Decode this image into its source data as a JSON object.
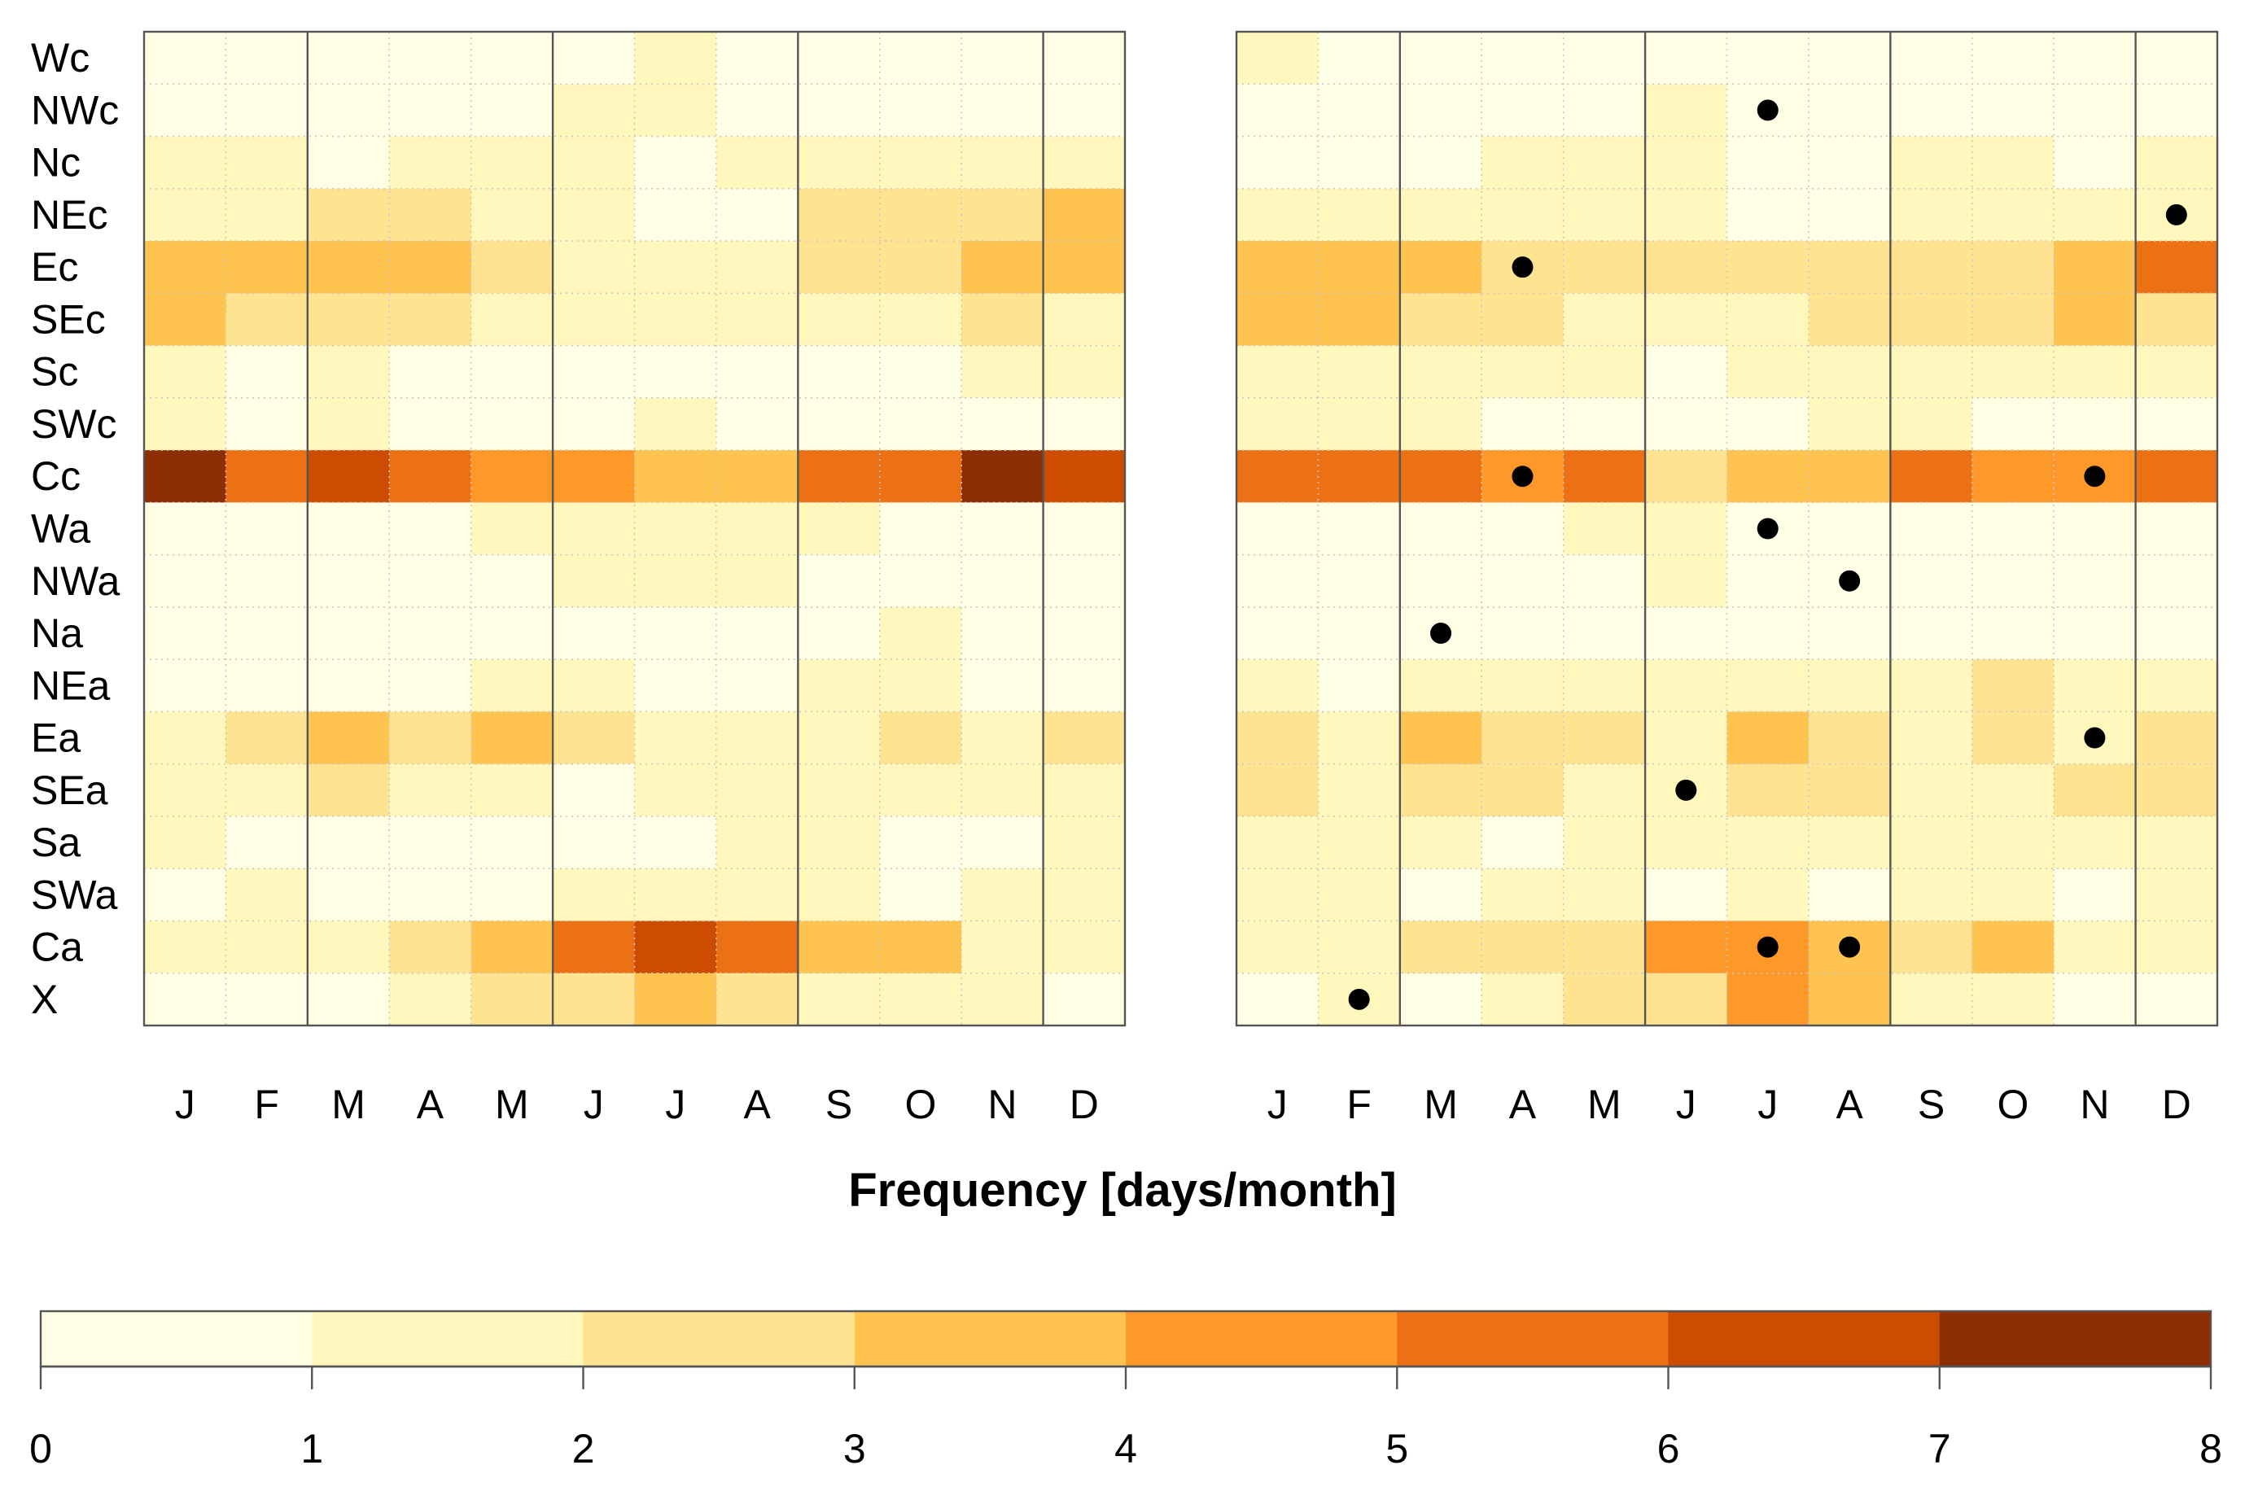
{
  "chart_data": {
    "type": "heatmap",
    "xlabel": "Frequency [days/month]",
    "rows": [
      "Wc",
      "NWc",
      "Nc",
      "NEc",
      "Ec",
      "SEc",
      "Sc",
      "SWc",
      "Cc",
      "Wa",
      "NWa",
      "Na",
      "NEa",
      "Ea",
      "SEa",
      "Sa",
      "SWa",
      "Ca",
      "X"
    ],
    "months": [
      "J",
      "F",
      "M",
      "A",
      "M",
      "J",
      "J",
      "A",
      "S",
      "O",
      "N",
      "D"
    ],
    "colorbar": {
      "ticks": [
        "0",
        "1",
        "2",
        "3",
        "4",
        "5",
        "6",
        "7",
        "8"
      ],
      "bins": [
        0,
        1,
        2,
        3,
        4,
        5,
        6,
        7,
        8
      ],
      "colors": [
        "#FFFFE5",
        "#FFF7BC",
        "#FEE391",
        "#FEC44F",
        "#FE9929",
        "#EC7014",
        "#CC4C02",
        "#8C2D04"
      ]
    },
    "panels": [
      {
        "name": "left",
        "values": [
          [
            0.5,
            0.5,
            0.5,
            0.5,
            0.5,
            0.5,
            1.5,
            0.5,
            0.5,
            0.5,
            0.5,
            0.5
          ],
          [
            0.5,
            0.5,
            0.5,
            0.5,
            0.5,
            1.5,
            1.5,
            0.5,
            0.5,
            0.5,
            0.5,
            0.5
          ],
          [
            1.5,
            1.5,
            0.5,
            1.5,
            1.5,
            1.5,
            0.5,
            1.5,
            1.5,
            1.5,
            1.5,
            1.5
          ],
          [
            1.5,
            1.5,
            2.5,
            2.5,
            1.5,
            1.5,
            0.5,
            0.5,
            2.5,
            2.5,
            2.5,
            3.5
          ],
          [
            3.5,
            3.5,
            3.5,
            3.5,
            2.5,
            1.5,
            1.5,
            1.5,
            2.5,
            2.5,
            3.5,
            3.5
          ],
          [
            3.5,
            2.5,
            2.5,
            2.5,
            1.5,
            1.5,
            1.5,
            1.5,
            1.5,
            1.5,
            2.5,
            1.5
          ],
          [
            1.5,
            0.5,
            1.5,
            0.5,
            0.5,
            0.5,
            0.5,
            0.5,
            0.5,
            0.5,
            1.5,
            1.5
          ],
          [
            1.5,
            0.5,
            1.5,
            0.5,
            0.5,
            0.5,
            1.5,
            0.5,
            0.5,
            0.5,
            0.5,
            0.5
          ],
          [
            7.5,
            5.5,
            6.5,
            5.5,
            4.5,
            4.5,
            3.5,
            3.5,
            5.5,
            5.5,
            7.5,
            6.5
          ],
          [
            0.5,
            0.5,
            0.5,
            0.5,
            1.5,
            1.5,
            1.5,
            1.5,
            1.5,
            0.5,
            0.5,
            0.5
          ],
          [
            0.5,
            0.5,
            0.5,
            0.5,
            0.5,
            1.5,
            1.5,
            1.5,
            0.5,
            0.5,
            0.5,
            0.5
          ],
          [
            0.5,
            0.5,
            0.5,
            0.5,
            0.5,
            0.5,
            0.5,
            0.5,
            0.5,
            1.5,
            0.5,
            0.5
          ],
          [
            0.5,
            0.5,
            0.5,
            0.5,
            1.5,
            1.5,
            0.5,
            0.5,
            1.5,
            1.5,
            0.5,
            0.5
          ],
          [
            1.5,
            2.5,
            3.5,
            2.5,
            3.5,
            2.5,
            1.5,
            1.5,
            1.5,
            2.5,
            1.5,
            2.5
          ],
          [
            1.5,
            1.5,
            2.5,
            1.5,
            1.5,
            0.5,
            1.5,
            1.5,
            1.5,
            1.5,
            1.5,
            1.5
          ],
          [
            1.5,
            0.5,
            0.5,
            0.5,
            0.5,
            0.5,
            0.5,
            1.5,
            1.5,
            0.5,
            0.5,
            1.5
          ],
          [
            0.5,
            1.5,
            0.5,
            0.5,
            0.5,
            1.5,
            1.5,
            1.5,
            1.5,
            0.5,
            1.5,
            1.5
          ],
          [
            1.5,
            1.5,
            1.5,
            2.5,
            3.5,
            5.5,
            6.5,
            5.5,
            3.5,
            3.5,
            1.5,
            1.5
          ],
          [
            0.5,
            0.5,
            0.5,
            1.5,
            2.5,
            2.5,
            3.5,
            2.5,
            1.5,
            1.5,
            1.5,
            0.5
          ]
        ],
        "dots": []
      },
      {
        "name": "right",
        "values": [
          [
            1.5,
            0.5,
            0.5,
            0.5,
            0.5,
            0.5,
            0.5,
            0.5,
            0.5,
            0.5,
            0.5,
            0.5
          ],
          [
            0.5,
            0.5,
            0.5,
            0.5,
            0.5,
            1.5,
            0.5,
            0.5,
            0.5,
            0.5,
            0.5,
            0.5
          ],
          [
            0.5,
            0.5,
            0.5,
            1.5,
            1.5,
            1.5,
            0.5,
            0.5,
            1.5,
            1.5,
            0.5,
            1.5
          ],
          [
            1.5,
            1.5,
            1.5,
            1.5,
            1.5,
            1.5,
            0.5,
            0.5,
            1.5,
            1.5,
            1.5,
            1.5
          ],
          [
            3.5,
            3.5,
            3.5,
            2.5,
            2.5,
            2.5,
            2.5,
            2.5,
            2.5,
            2.5,
            3.5,
            5.5
          ],
          [
            3.5,
            3.5,
            2.5,
            2.5,
            1.5,
            1.5,
            1.5,
            2.5,
            2.5,
            2.5,
            3.5,
            2.5
          ],
          [
            1.5,
            1.5,
            1.5,
            1.5,
            1.5,
            0.5,
            1.5,
            1.5,
            1.5,
            1.5,
            1.5,
            1.5
          ],
          [
            1.5,
            1.5,
            1.5,
            0.5,
            0.5,
            0.5,
            0.5,
            1.5,
            1.5,
            0.5,
            0.5,
            0.5
          ],
          [
            5.5,
            5.5,
            5.5,
            4.5,
            5.5,
            2.5,
            3.5,
            3.5,
            5.5,
            4.5,
            4.5,
            5.5
          ],
          [
            0.5,
            0.5,
            0.5,
            0.5,
            1.5,
            1.5,
            0.5,
            0.5,
            0.5,
            0.5,
            0.5,
            0.5
          ],
          [
            0.5,
            0.5,
            0.5,
            0.5,
            0.5,
            1.5,
            0.5,
            0.5,
            0.5,
            0.5,
            0.5,
            0.5
          ],
          [
            0.5,
            0.5,
            0.5,
            0.5,
            0.5,
            0.5,
            0.5,
            0.5,
            0.5,
            0.5,
            0.5,
            0.5
          ],
          [
            1.5,
            0.5,
            1.5,
            1.5,
            1.5,
            1.5,
            1.5,
            1.5,
            1.5,
            2.5,
            1.5,
            1.5
          ],
          [
            2.5,
            1.5,
            3.5,
            2.5,
            2.5,
            1.5,
            3.5,
            2.5,
            1.5,
            2.5,
            1.5,
            2.5
          ],
          [
            2.5,
            1.5,
            2.5,
            2.5,
            1.5,
            1.5,
            2.5,
            2.5,
            1.5,
            1.5,
            2.5,
            2.5
          ],
          [
            1.5,
            1.5,
            1.5,
            0.5,
            1.5,
            1.5,
            1.5,
            1.5,
            1.5,
            1.5,
            1.5,
            1.5
          ],
          [
            1.5,
            1.5,
            0.5,
            1.5,
            1.5,
            0.5,
            1.5,
            0.5,
            1.5,
            1.5,
            0.5,
            1.5
          ],
          [
            1.5,
            1.5,
            2.5,
            2.5,
            2.5,
            4.5,
            4.5,
            3.5,
            2.5,
            3.5,
            1.5,
            1.5
          ],
          [
            0.5,
            1.5,
            0.5,
            1.5,
            2.5,
            2.5,
            4.5,
            3.5,
            1.5,
            1.5,
            0.5,
            0.5
          ]
        ],
        "dots": [
          {
            "row": "NWc",
            "month_index": 7
          },
          {
            "row": "NEc",
            "month_index": 12
          },
          {
            "row": "Ec",
            "month_index": 4
          },
          {
            "row": "Cc",
            "month_index": 4
          },
          {
            "row": "Cc",
            "month_index": 11
          },
          {
            "row": "Wa",
            "month_index": 7
          },
          {
            "row": "NWa",
            "month_index": 8
          },
          {
            "row": "Na",
            "month_index": 3
          },
          {
            "row": "Ea",
            "month_index": 11
          },
          {
            "row": "SEa",
            "month_index": 6
          },
          {
            "row": "Ca",
            "month_index": 7
          },
          {
            "row": "Ca",
            "month_index": 8
          },
          {
            "row": "X",
            "month_index": 2
          }
        ]
      }
    ]
  }
}
